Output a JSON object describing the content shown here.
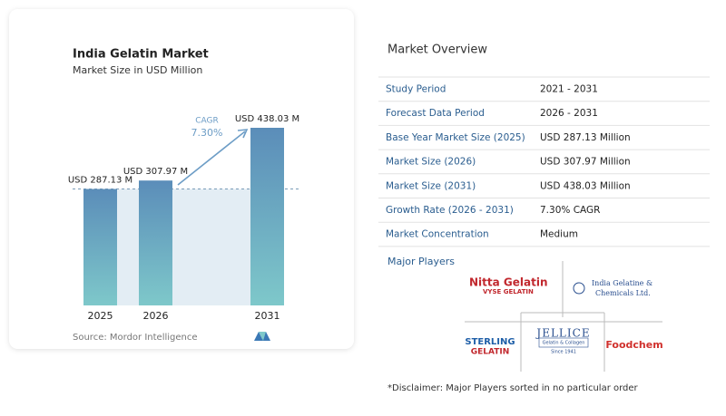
{
  "chart_data": {
    "type": "bar",
    "title": "India Gelatin Market",
    "subtitle": "Market Size in USD Million",
    "categories": [
      "2025",
      "2026",
      "2031"
    ],
    "values": [
      287.13,
      307.97,
      438.03
    ],
    "value_labels": [
      "USD 287.13 M",
      "USD 307.97 M",
      "USD 438.03 M"
    ],
    "annotation": {
      "label": "CAGR",
      "value": "7.30%"
    },
    "source": "Source:  Mordor Intelligence"
  },
  "overview": {
    "title": "Market Overview",
    "rows": [
      [
        "Study Period",
        "2021 - 2031"
      ],
      [
        "Forecast Data Period",
        "2026 - 2031"
      ],
      [
        "Base Year Market Size (2025)",
        "USD 287.13 Million"
      ],
      [
        "Market Size (2026)",
        "USD 307.97 Million"
      ],
      [
        "Market Size (2031)",
        "USD 438.03 Million"
      ],
      [
        "Growth Rate (2026 - 2031)",
        "7.30% CAGR"
      ],
      [
        "Market Concentration",
        "Medium"
      ]
    ]
  },
  "players": {
    "title": "Major Players",
    "logos": [
      "Nitta Gelatin",
      "VYSE GELATIN",
      "India Gelatine &",
      "Chemicals Ltd.",
      "JELLICE",
      "Gelatin & Collagen",
      "Since 1941",
      "STERLING",
      "GELATIN",
      "Foodchem"
    ]
  },
  "disclaimer": "*Disclaimer: Major Players sorted in no particular order"
}
